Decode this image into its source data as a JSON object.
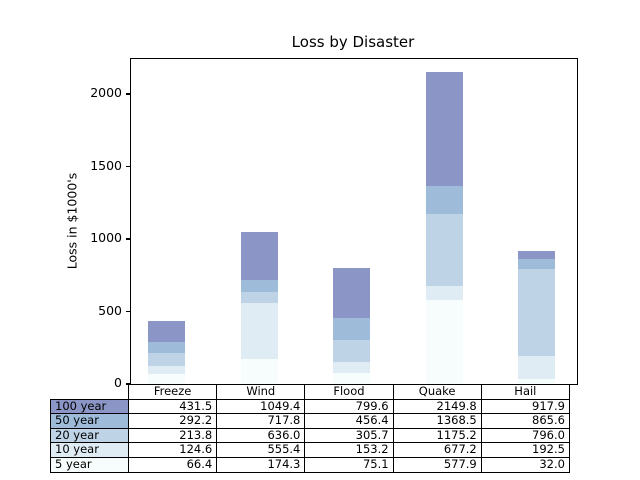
{
  "title": "Loss by Disaster",
  "ylabel": "Loss in $1000's",
  "colors": {
    "background": "#ffffff",
    "axis": "#000000",
    "row_100_year": "#8c96c6",
    "row_50_year": "#9ebcda",
    "row_20_year": "#bfd3e6",
    "row_10_year": "#e0ecf4",
    "row_5_year": "#f7fcfd"
  },
  "chart_data": {
    "type": "bar",
    "stacked": true,
    "title": "Loss by Disaster",
    "xlabel": "",
    "ylabel": "Loss in $1000's",
    "categories": [
      "Freeze",
      "Wind",
      "Flood",
      "Quake",
      "Hail"
    ],
    "series": [
      {
        "name": "5 year",
        "color": "#f7fcfd",
        "cumulative_top": [
          66.4,
          174.3,
          75.1,
          577.9,
          32.0
        ]
      },
      {
        "name": "10 year",
        "color": "#e0ecf4",
        "cumulative_top": [
          124.6,
          555.4,
          153.2,
          677.2,
          192.5
        ]
      },
      {
        "name": "20 year",
        "color": "#bfd3e6",
        "cumulative_top": [
          213.8,
          636.0,
          305.7,
          1175.2,
          796.0
        ]
      },
      {
        "name": "50 year",
        "color": "#9ebcda",
        "cumulative_top": [
          292.2,
          717.8,
          456.4,
          1368.5,
          865.6
        ]
      },
      {
        "name": "100 year",
        "color": "#8c96c6",
        "cumulative_top": [
          431.5,
          1049.4,
          799.6,
          2149.8,
          917.9
        ]
      }
    ],
    "yticks": [
      0,
      500,
      1000,
      1500,
      2000
    ],
    "ylim": [
      0,
      2241
    ],
    "grid": false,
    "legend": "none",
    "x_tick_labels": "none"
  },
  "table": {
    "col_labels": [
      "Freeze",
      "Wind",
      "Flood",
      "Quake",
      "Hail"
    ],
    "rows": [
      {
        "label": "100 year",
        "color": "#8c96c6",
        "values": [
          "431.5",
          "1049.4",
          "799.6",
          "2149.8",
          "917.9"
        ]
      },
      {
        "label": "50 year",
        "color": "#9ebcda",
        "values": [
          "292.2",
          "717.8",
          "456.4",
          "1368.5",
          "865.6"
        ]
      },
      {
        "label": "20 year",
        "color": "#bfd3e6",
        "values": [
          "213.8",
          "636.0",
          "305.7",
          "1175.2",
          "796.0"
        ]
      },
      {
        "label": "10 year",
        "color": "#e0ecf4",
        "values": [
          "124.6",
          "555.4",
          "153.2",
          "677.2",
          "192.5"
        ]
      },
      {
        "label": "5 year",
        "color": "#f7fcfd",
        "values": [
          "66.4",
          "174.3",
          "75.1",
          "577.9",
          "32.0"
        ]
      }
    ]
  }
}
